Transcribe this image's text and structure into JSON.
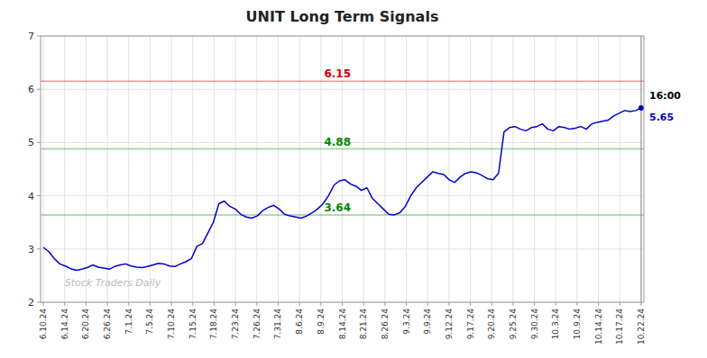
{
  "chart_data": {
    "type": "line",
    "title": "UNIT Long Term Signals",
    "color": "#0000cc",
    "grid": true,
    "watermark": "Stock Traders Daily",
    "x": [
      0,
      1,
      2,
      3,
      4,
      5,
      6,
      7,
      8,
      9,
      10,
      11,
      12,
      13,
      14,
      15,
      16,
      17,
      18,
      19,
      20,
      21,
      22,
      23,
      24,
      25,
      26,
      27,
      28,
      29,
      30,
      31,
      32,
      33,
      34,
      35,
      36,
      37,
      38,
      39,
      40,
      41,
      42,
      43,
      44,
      45,
      46,
      47,
      48,
      49,
      50,
      51,
      52,
      53,
      54,
      55,
      56,
      57,
      58,
      59,
      60,
      61,
      62,
      63,
      64,
      65,
      66,
      67,
      68,
      69,
      70,
      71,
      72,
      73,
      74,
      75,
      76,
      77,
      78,
      79,
      80,
      81,
      82,
      83,
      84,
      85,
      86,
      87,
      88,
      89,
      90,
      91,
      92,
      93,
      94,
      95,
      96,
      97,
      98,
      99,
      100,
      101,
      102,
      103,
      104,
      105,
      106,
      107,
      108,
      109
    ],
    "values": [
      3.03,
      2.95,
      2.82,
      2.72,
      2.68,
      2.63,
      2.6,
      2.62,
      2.65,
      2.7,
      2.66,
      2.64,
      2.62,
      2.67,
      2.7,
      2.72,
      2.68,
      2.66,
      2.65,
      2.67,
      2.7,
      2.73,
      2.72,
      2.68,
      2.67,
      2.72,
      2.76,
      2.82,
      3.05,
      3.1,
      3.3,
      3.5,
      3.85,
      3.9,
      3.8,
      3.75,
      3.65,
      3.6,
      3.58,
      3.62,
      3.72,
      3.78,
      3.82,
      3.75,
      3.65,
      3.62,
      3.6,
      3.58,
      3.62,
      3.68,
      3.75,
      3.85,
      4.0,
      4.2,
      4.28,
      4.3,
      4.22,
      4.18,
      4.1,
      4.15,
      3.95,
      3.85,
      3.75,
      3.65,
      3.64,
      3.68,
      3.8,
      4.0,
      4.15,
      4.25,
      4.35,
      4.45,
      4.42,
      4.4,
      4.3,
      4.25,
      4.35,
      4.42,
      4.45,
      4.43,
      4.38,
      4.32,
      4.3,
      4.42,
      5.2,
      5.28,
      5.3,
      5.25,
      5.22,
      5.28,
      5.3,
      5.35,
      5.25,
      5.22,
      5.3,
      5.28,
      5.25,
      5.27,
      5.3,
      5.25,
      5.35,
      5.38,
      5.4,
      5.42,
      5.5,
      5.55,
      5.6,
      5.58,
      5.6,
      5.65
    ],
    "xlim": [
      -0.5,
      109.5
    ],
    "xticks": [
      {
        "value": 0,
        "label": "6.10.24"
      },
      {
        "value": 3.892857142857143,
        "label": "6.14.24"
      },
      {
        "value": 7.785714285714286,
        "label": "6.20.24"
      },
      {
        "value": 11.678571428571429,
        "label": "6.26.24"
      },
      {
        "value": 15.571428571428571,
        "label": "7.1.24"
      },
      {
        "value": 19.464285714285715,
        "label": "7.5.24"
      },
      {
        "value": 23.357142857142858,
        "label": "7.10.24"
      },
      {
        "value": 27.25,
        "label": "7.15.24"
      },
      {
        "value": 31.142857142857142,
        "label": "7.18.24"
      },
      {
        "value": 35.035714285714285,
        "label": "7.23.24"
      },
      {
        "value": 38.92857142857143,
        "label": "7.26.24"
      },
      {
        "value": 42.82142857142857,
        "label": "7.31.24"
      },
      {
        "value": 46.714285714285715,
        "label": "8.6.24"
      },
      {
        "value": 50.607142857142854,
        "label": "8.9.24"
      },
      {
        "value": 54.5,
        "label": "8.14.24"
      },
      {
        "value": 58.392857142857146,
        "label": "8.21.24"
      },
      {
        "value": 62.285714285714285,
        "label": "8.26.24"
      },
      {
        "value": 66.17857142857143,
        "label": "9.3.24"
      },
      {
        "value": 70.07142857142857,
        "label": "9.9.24"
      },
      {
        "value": 73.96428571428571,
        "label": "9.12.24"
      },
      {
        "value": 77.85714285714286,
        "label": "9.17.24"
      },
      {
        "value": 81.75,
        "label": "9.20.24"
      },
      {
        "value": 85.64285714285714,
        "label": "9.25.24"
      },
      {
        "value": 89.53571428571429,
        "label": "9.30.24"
      },
      {
        "value": 93.42857142857143,
        "label": "10.3.24"
      },
      {
        "value": 97.32142857142857,
        "label": "10.9.24"
      },
      {
        "value": 101.21428571428571,
        "label": "10.14.24"
      },
      {
        "value": 105.10714285714286,
        "label": "10.17.24"
      },
      {
        "value": 109,
        "label": "10.22.24"
      }
    ],
    "ylim": [
      2,
      7
    ],
    "yticks": [
      2,
      3,
      4,
      5,
      6,
      7
    ],
    "hlines": [
      {
        "value": 6.15,
        "label": "6.15",
        "color": "#cc0000"
      },
      {
        "value": 4.88,
        "label": "4.88",
        "color": "#008800"
      },
      {
        "value": 3.64,
        "label": "3.64",
        "color": "#008800"
      }
    ],
    "annotations": [
      {
        "text": "16:00",
        "x": 109,
        "y": 5.65
      },
      {
        "text": "5.65",
        "x": 109,
        "y": 5.65
      }
    ]
  }
}
